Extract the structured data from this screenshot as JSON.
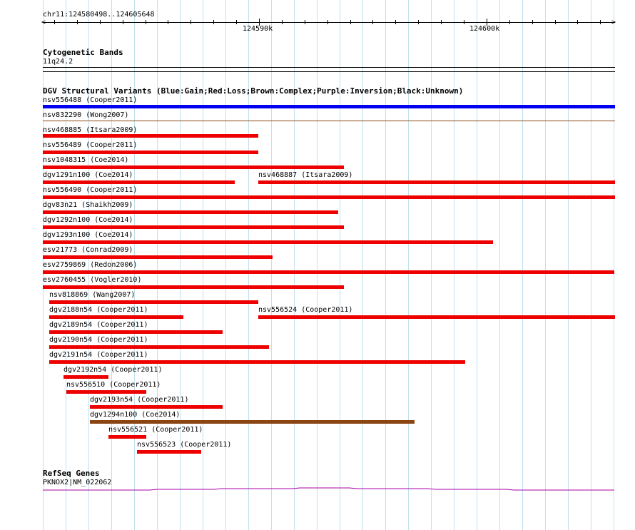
{
  "ruler": {
    "location": "chr11:124580498..124605648",
    "tick_labels": [
      {
        "label": "124590k"
      },
      {
        "label": "124600k"
      }
    ]
  },
  "cytoband_track": {
    "title": "Cytogenetic Bands",
    "band": "11q24.2"
  },
  "dgv_track": {
    "title": "DGV Structural Variants (Blue:Gain;Red:Loss;Brown:Complex;Purple:Inversion;Black:Unknown)",
    "variants": [
      {
        "label": "nsv556488 (Cooper2011)",
        "type": "Gain",
        "color": "#0000ee",
        "start": 124580498,
        "end": 124605648
      },
      {
        "label": "nsv832290 (Wong2007)",
        "type": "Complex",
        "color": "#8b4513",
        "start": 124580498,
        "end": 124605648
      },
      {
        "label": "nsv468885 (Itsara2009)",
        "type": "Loss",
        "color": "#ee0000",
        "start": 124580498,
        "end": 124589980
      },
      {
        "label": "nsv556489 (Cooper2011)",
        "type": "Loss",
        "color": "#ee0000",
        "start": 124580498,
        "end": 124589980
      },
      {
        "label": "nsv1048315 (Coe2014)",
        "type": "Loss",
        "color": "#ee0000",
        "start": 124580498,
        "end": 124593730
      },
      {
        "label": "dgv1291n100 (Coe2014)",
        "type": "Loss",
        "color": "#ee0000",
        "start": 124580498,
        "end": 124588930
      },
      {
        "label": "nsv468887 (Itsara2009)",
        "type": "Loss",
        "color": "#ee0000",
        "start": 124589980,
        "end": 124605648
      },
      {
        "label": "nsv556490 (Cooper2011)",
        "type": "Loss",
        "color": "#ee0000",
        "start": 124580498,
        "end": 124605648
      },
      {
        "label": "dgv83n21 (Shaikh2009)",
        "type": "Loss",
        "color": "#ee0000",
        "start": 124580498,
        "end": 124593470
      },
      {
        "label": "dgv1292n100 (Coe2014)",
        "type": "Loss",
        "color": "#ee0000",
        "start": 124580498,
        "end": 124593730
      },
      {
        "label": "dgv1293n100 (Coe2014)",
        "type": "Loss",
        "color": "#ee0000",
        "start": 124580498,
        "end": 124600290
      },
      {
        "label": "esv21773 (Conrad2009)",
        "type": "Loss",
        "color": "#ee0000",
        "start": 124580498,
        "end": 124590580
      },
      {
        "label": "esv2759869 (Redon2006)",
        "type": "Loss",
        "color": "#ee0000",
        "start": 124580498,
        "end": 124605610
      },
      {
        "label": "esv2760455 (Vogler2010)",
        "type": "Loss",
        "color": "#ee0000",
        "start": 124580498,
        "end": 124593730
      },
      {
        "label": "nsv818869 (Wang2007)",
        "type": "Loss",
        "color": "#ee0000",
        "start": 124580790,
        "end": 124589980
      },
      {
        "label": "dgv2188n54 (Cooper2011)",
        "type": "Loss",
        "color": "#ee0000",
        "start": 124580790,
        "end": 124586680
      },
      {
        "label": "nsv556524 (Cooper2011)",
        "type": "Loss",
        "color": "#ee0000",
        "start": 124589980,
        "end": 124605648
      },
      {
        "label": "dgv2189n54 (Cooper2011)",
        "type": "Loss",
        "color": "#ee0000",
        "start": 124580790,
        "end": 124588390
      },
      {
        "label": "dgv2190n54 (Cooper2011)",
        "type": "Loss",
        "color": "#ee0000",
        "start": 124580790,
        "end": 124590440
      },
      {
        "label": "dgv2191n54 (Cooper2011)",
        "type": "Loss",
        "color": "#ee0000",
        "start": 124580790,
        "end": 124599050
      },
      {
        "label": "dgv2192n54 (Cooper2011)",
        "type": "Loss",
        "color": "#ee0000",
        "start": 124581410,
        "end": 124583370
      },
      {
        "label": "nsv556510 (Cooper2011)",
        "type": "Loss",
        "color": "#ee0000",
        "start": 124581540,
        "end": 124585060
      },
      {
        "label": "dgv2193n54 (Cooper2011)",
        "type": "Loss",
        "color": "#ee0000",
        "start": 124582580,
        "end": 124588390
      },
      {
        "label": "dgv1294n100 (Coe2014)",
        "type": "Complex",
        "color": "#8b4513",
        "start": 124582580,
        "end": 124596830
      },
      {
        "label": "nsv556521 (Cooper2011)",
        "type": "Loss",
        "color": "#ee0000",
        "start": 124583380,
        "end": 124585060
      },
      {
        "label": "nsv556523 (Cooper2011)",
        "type": "Loss",
        "color": "#ee0000",
        "start": 124584640,
        "end": 124587460
      }
    ]
  },
  "refseq_track": {
    "title": "RefSeq Genes",
    "gene_label": "PKNOX2|NM_022062",
    "color": "#aa00aa"
  }
}
